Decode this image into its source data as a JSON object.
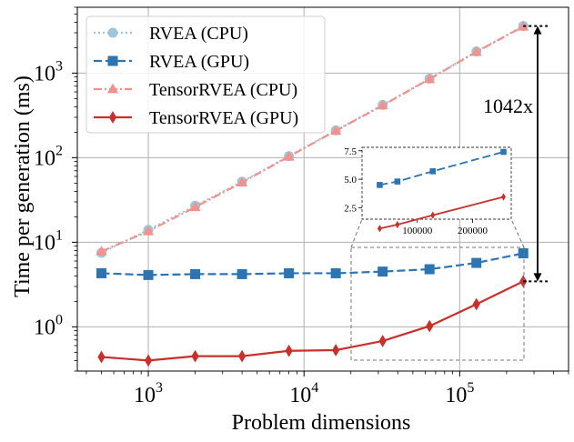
{
  "chart_data": {
    "type": "line",
    "xscale": "log",
    "yscale": "log",
    "xlabel": "Problem dimensions",
    "ylabel": "Time per generation (ms)",
    "xlim": [
      350,
      500000
    ],
    "ylim": [
      0.3,
      6000
    ],
    "x": [
      500,
      1000,
      2000,
      4000,
      8000,
      16000,
      32000,
      64000,
      128000,
      256000
    ],
    "x_ticks": [
      {
        "value": 1000,
        "base": "10",
        "exp": "3"
      },
      {
        "value": 10000,
        "base": "10",
        "exp": "4"
      },
      {
        "value": 100000,
        "base": "10",
        "exp": "5"
      }
    ],
    "y_ticks": [
      {
        "value": 1,
        "base": "10",
        "exp": "0"
      },
      {
        "value": 10,
        "base": "10",
        "exp": "1"
      },
      {
        "value": 100,
        "base": "10",
        "exp": "2"
      },
      {
        "value": 1000,
        "base": "10",
        "exp": "3"
      }
    ],
    "series": [
      {
        "name": "RVEA (CPU)",
        "color": "#9ec6db",
        "dash": "dotted",
        "marker": "circle",
        "values": [
          7.5,
          14,
          27,
          52,
          104,
          210,
          420,
          860,
          1800,
          3600
        ]
      },
      {
        "name": "RVEA (GPU)",
        "color": "#2c75b2",
        "dash": "dashed",
        "marker": "square",
        "values": [
          4.3,
          4.1,
          4.2,
          4.2,
          4.3,
          4.3,
          4.5,
          4.8,
          5.7,
          7.4
        ]
      },
      {
        "name": "TensorRVEA (CPU)",
        "color": "#f4918c",
        "dash": "dashdot",
        "marker": "triangle",
        "values": [
          7.8,
          13.5,
          26,
          51,
          103,
          208,
          415,
          850,
          1780,
          3550
        ]
      },
      {
        "name": "TensorRVEA (GPU)",
        "color": "#c9302c",
        "dash": "solid",
        "marker": "diamond",
        "values": [
          0.44,
          0.4,
          0.45,
          0.45,
          0.52,
          0.53,
          0.68,
          1.02,
          1.85,
          3.45
        ]
      }
    ],
    "legend_position": "top-left",
    "annotation": {
      "text": "1042x",
      "from_value": 3.45,
      "to_value": 3600
    },
    "inset": {
      "x_range": [
        0,
        270000
      ],
      "y_range": [
        1.5,
        7.8
      ],
      "x_ticks": [
        {
          "value": 100000,
          "label": "100000"
        },
        {
          "value": 200000,
          "label": "200000"
        }
      ],
      "y_ticks": [
        {
          "value": 2.5,
          "label": "2.5"
        },
        {
          "value": 5.0,
          "label": "5.0"
        },
        {
          "value": 7.5,
          "label": "7.5"
        }
      ],
      "series_names": [
        "RVEA (GPU)",
        "TensorRVEA (GPU)"
      ]
    }
  }
}
